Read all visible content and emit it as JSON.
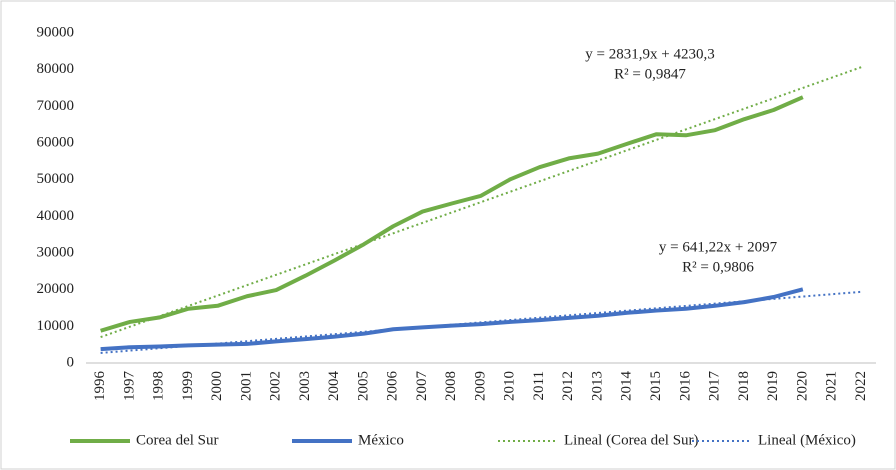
{
  "chart_data": {
    "type": "line",
    "categories": [
      "1996",
      "1997",
      "1998",
      "1999",
      "2000",
      "2001",
      "2002",
      "2003",
      "2004",
      "2005",
      "2006",
      "2007",
      "2008",
      "2009",
      "2010",
      "2011",
      "2012",
      "2013",
      "2014",
      "2015",
      "2016",
      "2017",
      "2018",
      "2019",
      "2020",
      "2021",
      "2022"
    ],
    "series": [
      {
        "name": "Corea del Sur",
        "color": "#70ad47",
        "style": "solid",
        "values": [
          8800,
          11200,
          12400,
          14800,
          15600,
          18200,
          19900,
          23800,
          28000,
          32400,
          37300,
          41300,
          43500,
          45600,
          50100,
          53400,
          55800,
          57100,
          59800,
          62400,
          62100,
          63500,
          66500,
          69000,
          72500,
          null,
          null
        ]
      },
      {
        "name": "México",
        "color": "#4472c4",
        "style": "solid",
        "values": [
          3800,
          4300,
          4500,
          4800,
          5000,
          5200,
          5900,
          6500,
          7200,
          8000,
          9200,
          9700,
          10200,
          10600,
          11200,
          11700,
          12300,
          12900,
          13700,
          14300,
          14800,
          15600,
          16600,
          18000,
          20100,
          null,
          null
        ]
      },
      {
        "name": "Lineal (Corea del Sur)",
        "color": "#70ad47",
        "style": "dotted",
        "values": [
          7062.2,
          9894.1,
          12726.0,
          15557.9,
          18389.8,
          21221.7,
          24053.6,
          26885.5,
          29717.4,
          32549.3,
          35381.2,
          38213.1,
          41045.0,
          43876.9,
          46708.8,
          49540.7,
          52372.6,
          55204.5,
          58036.4,
          60868.3,
          63700.2,
          66532.1,
          69364.0,
          72195.9,
          75027.8,
          77859.7,
          80691.6
        ]
      },
      {
        "name": "Lineal (México)",
        "color": "#4472c4",
        "style": "dotted",
        "values": [
          2738.22,
          3379.44,
          4020.66,
          4661.88,
          5303.1,
          5944.32,
          6585.54,
          7226.76,
          7867.98,
          8509.2,
          9150.42,
          9791.64,
          10432.86,
          11074.08,
          11715.3,
          12356.52,
          12997.74,
          13638.96,
          14280.18,
          14921.4,
          15562.62,
          16203.84,
          16845.06,
          17486.28,
          18127.5,
          18768.72,
          19409.94
        ]
      }
    ],
    "annotations": [
      "y = 2831,9x + 4230,3",
      "R² = 0,9847",
      "y = 641,22x + 2097",
      "R² = 0,9806"
    ],
    "ylim": [
      0,
      90000
    ],
    "yticks": [
      0,
      10000,
      20000,
      30000,
      40000,
      50000,
      60000,
      70000,
      80000,
      90000
    ],
    "grid": false,
    "legend": "bottom"
  }
}
